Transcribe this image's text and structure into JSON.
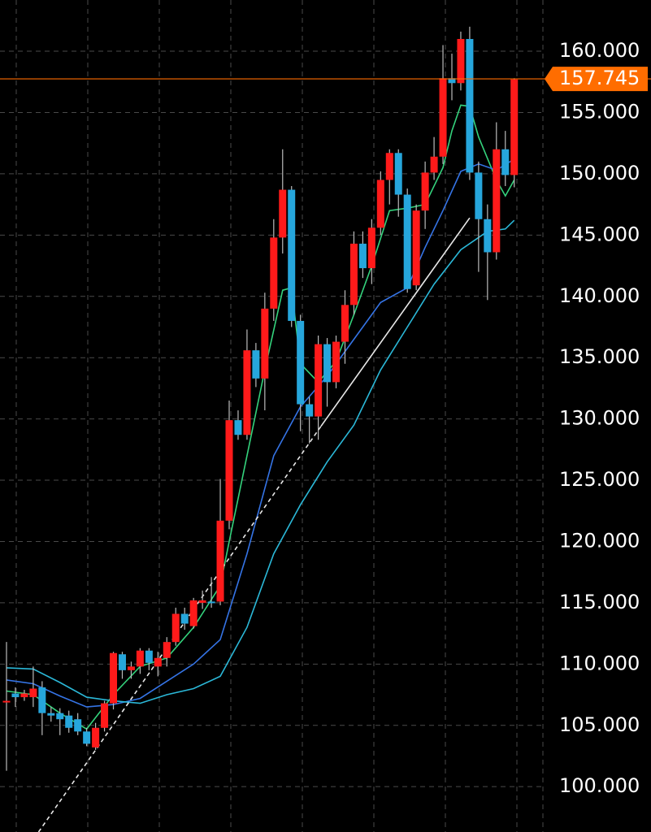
{
  "chart_data": {
    "type": "candlestick",
    "up_color": "#ff1a1a",
    "down_color": "#26a6dc",
    "wick_color": "#bbbbbb",
    "open": [
      106.9,
      107.6,
      107.3,
      107.3,
      108.1,
      106.0,
      106.0,
      105.8,
      105.5,
      104.5,
      103.2,
      104.8,
      106.8,
      110.8,
      109.5,
      109.8,
      111.1,
      109.8,
      110.5,
      111.8,
      114.1,
      113.1,
      115.0,
      115.1,
      115.1,
      121.7,
      129.9,
      128.7,
      135.6,
      133.3,
      139.0,
      144.8,
      148.7,
      138.0,
      131.2,
      130.2,
      136.1,
      133.0,
      136.3,
      139.3,
      144.3,
      142.3,
      145.6,
      149.5,
      151.7,
      148.3,
      140.9,
      147.0,
      150.1,
      151.4,
      157.8,
      157.4,
      161.0,
      150.1,
      146.3,
      143.6,
      152.0,
      149.9
    ],
    "high": [
      111.8,
      108.1,
      107.9,
      109.8,
      108.6,
      106.5,
      106.4,
      106.2,
      106.0,
      104.8,
      105.2,
      107.0,
      111.0,
      111.0,
      110.2,
      111.3,
      111.3,
      111.0,
      112.2,
      114.6,
      114.6,
      115.4,
      116.0,
      117.1,
      125.1,
      131.5,
      130.7,
      137.3,
      136.2,
      140.3,
      146.3,
      152.0,
      149.0,
      138.5,
      131.8,
      136.8,
      136.6,
      136.8,
      140.5,
      145.3,
      145.3,
      146.3,
      150.2,
      152.0,
      152.0,
      148.8,
      147.5,
      151.0,
      153.0,
      160.5,
      159.8,
      161.6,
      162.0,
      151.0,
      147.5,
      154.2,
      153.5,
      157.8
    ],
    "low": [
      101.3,
      106.5,
      107.0,
      106.5,
      104.2,
      105.3,
      104.2,
      104.4,
      104.2,
      103.3,
      103.0,
      104.5,
      106.3,
      108.8,
      108.8,
      109.2,
      109.5,
      109.0,
      109.8,
      111.5,
      112.8,
      112.9,
      114.5,
      114.6,
      114.8,
      121.0,
      128.3,
      128.3,
      132.6,
      130.7,
      138.0,
      143.5,
      137.5,
      129.0,
      128.0,
      128.3,
      131.0,
      132.5,
      134.5,
      138.5,
      141.5,
      141.0,
      145.0,
      147.5,
      146.5,
      140.3,
      140.5,
      145.5,
      149.5,
      150.8,
      156.0,
      156.8,
      149.5,
      142.0,
      139.7,
      143.0,
      149.0,
      148.9
    ],
    "close": [
      107.0,
      107.3,
      107.6,
      108.0,
      106.0,
      105.8,
      105.5,
      104.8,
      104.5,
      103.5,
      104.8,
      106.8,
      110.9,
      109.5,
      109.8,
      111.1,
      110.1,
      110.5,
      111.8,
      114.1,
      113.3,
      115.2,
      115.2,
      115.0,
      121.7,
      129.9,
      128.7,
      135.6,
      133.3,
      139.0,
      144.8,
      148.7,
      138.0,
      131.2,
      130.2,
      136.1,
      133.0,
      136.3,
      139.3,
      144.3,
      142.3,
      145.6,
      149.5,
      151.7,
      148.3,
      140.6,
      147.0,
      150.1,
      151.4,
      157.8,
      157.4,
      161.0,
      150.1,
      146.3,
      143.6,
      152.0,
      149.9,
      157.7
    ],
    "overlays": [
      {
        "color": "#34d27c",
        "x": [
          0,
          3,
          6,
          9,
          12,
          15,
          18,
          21,
          24,
          25,
          27,
          29,
          31,
          32,
          33,
          35,
          37,
          39,
          41,
          43,
          45,
          47,
          49,
          50,
          51,
          52,
          53,
          55,
          56,
          57
        ],
        "values": [
          107.8,
          107.5,
          106.0,
          104.7,
          107.5,
          109.8,
          110.5,
          113.0,
          116.4,
          120.0,
          127.0,
          134.0,
          140.5,
          140.7,
          134.5,
          133.0,
          134.7,
          138.5,
          142.5,
          147.0,
          147.2,
          147.5,
          150.5,
          153.5,
          155.6,
          155.5,
          153.0,
          149.5,
          148.2,
          149.5
        ]
      },
      {
        "color": "#3574e6",
        "x": [
          0,
          3,
          6,
          9,
          12,
          15,
          18,
          21,
          24,
          27,
          30,
          33,
          36,
          39,
          42,
          45,
          47,
          49,
          51,
          53,
          55,
          57
        ],
        "values": [
          108.7,
          108.4,
          107.4,
          106.5,
          106.7,
          107.2,
          108.6,
          110.0,
          112.0,
          119.0,
          127.0,
          131.0,
          133.5,
          136.5,
          139.5,
          140.7,
          144.0,
          147.0,
          150.2,
          150.8,
          150.3,
          151.2
        ]
      },
      {
        "color": "#2bb8d8",
        "x": [
          0,
          3,
          6,
          9,
          12,
          15,
          18,
          21,
          24,
          27,
          30,
          33,
          36,
          39,
          42,
          45,
          48,
          51,
          54,
          56,
          57
        ],
        "values": [
          109.7,
          109.6,
          108.5,
          107.3,
          107.0,
          106.8,
          107.5,
          108.0,
          109.0,
          113.0,
          119.0,
          123.0,
          126.5,
          129.5,
          134.0,
          137.5,
          141.0,
          143.8,
          145.3,
          145.5,
          146.2
        ]
      }
    ],
    "trendlines": [
      {
        "color": "#e8e8e8",
        "style": "dashed",
        "x": [
          3.6,
          35.3
        ],
        "values": [
          96.3,
          129.4
        ]
      },
      {
        "color": "#e8e8e8",
        "style": "solid",
        "x": [
          35.3,
          52
        ],
        "values": [
          129.4,
          146.4
        ]
      }
    ],
    "current_price": 157.745,
    "current_price_color": "#ff6d00",
    "ylim": [
      96.3,
      164.18
    ],
    "yticks": [
      {
        "value": 100,
        "label": "100.000"
      },
      {
        "value": 105,
        "label": "105.000"
      },
      {
        "value": 110,
        "label": "110.000"
      },
      {
        "value": 115,
        "label": "115.000"
      },
      {
        "value": 120,
        "label": "120.000"
      },
      {
        "value": 125,
        "label": "125.000"
      },
      {
        "value": 130,
        "label": "130.000"
      },
      {
        "value": 135,
        "label": "135.000"
      },
      {
        "value": 140,
        "label": "140.000"
      },
      {
        "value": 145,
        "label": "145.000"
      },
      {
        "value": 150,
        "label": "150.000"
      },
      {
        "value": 155,
        "label": "155.000"
      },
      {
        "value": 160,
        "label": "160.000"
      }
    ],
    "grid": true
  }
}
